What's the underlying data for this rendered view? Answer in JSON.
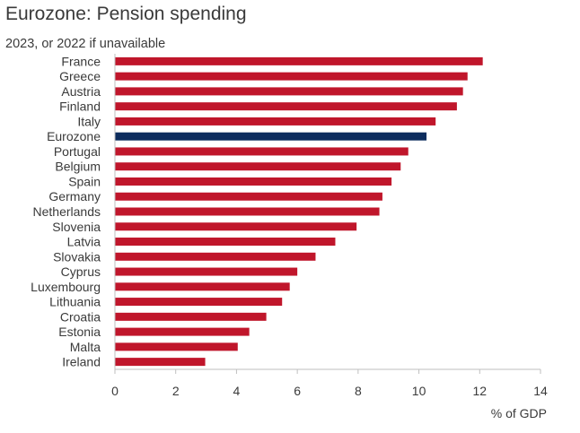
{
  "chart_data": {
    "type": "bar",
    "orientation": "horizontal",
    "title": "Eurozone: Pension spending",
    "subtitle": "2023, or 2022 if unavailable",
    "xlabel": "% of GDP",
    "xlim": [
      0,
      14
    ],
    "xticks": [
      0,
      2,
      4,
      6,
      8,
      10,
      12,
      14
    ],
    "grid": false,
    "categories": [
      "France",
      "Greece",
      "Austria",
      "Finland",
      "Italy",
      "Eurozone",
      "Portugal",
      "Belgium",
      "Spain",
      "Germany",
      "Netherlands",
      "Slovenia",
      "Latvia",
      "Slovakia",
      "Cyprus",
      "Luxembourg",
      "Lithuania",
      "Croatia",
      "Estonia",
      "Malta",
      "Ireland"
    ],
    "values": [
      12.1,
      11.6,
      11.45,
      11.25,
      10.55,
      10.25,
      9.65,
      9.4,
      9.1,
      8.8,
      8.7,
      7.95,
      7.25,
      6.6,
      6.0,
      5.75,
      5.5,
      4.98,
      4.42,
      4.04,
      2.97
    ],
    "highlight": "Eurozone",
    "colors": {
      "default": "#c0162b",
      "highlight": "#0d2d5e",
      "axis": "#bfbfbf"
    }
  }
}
